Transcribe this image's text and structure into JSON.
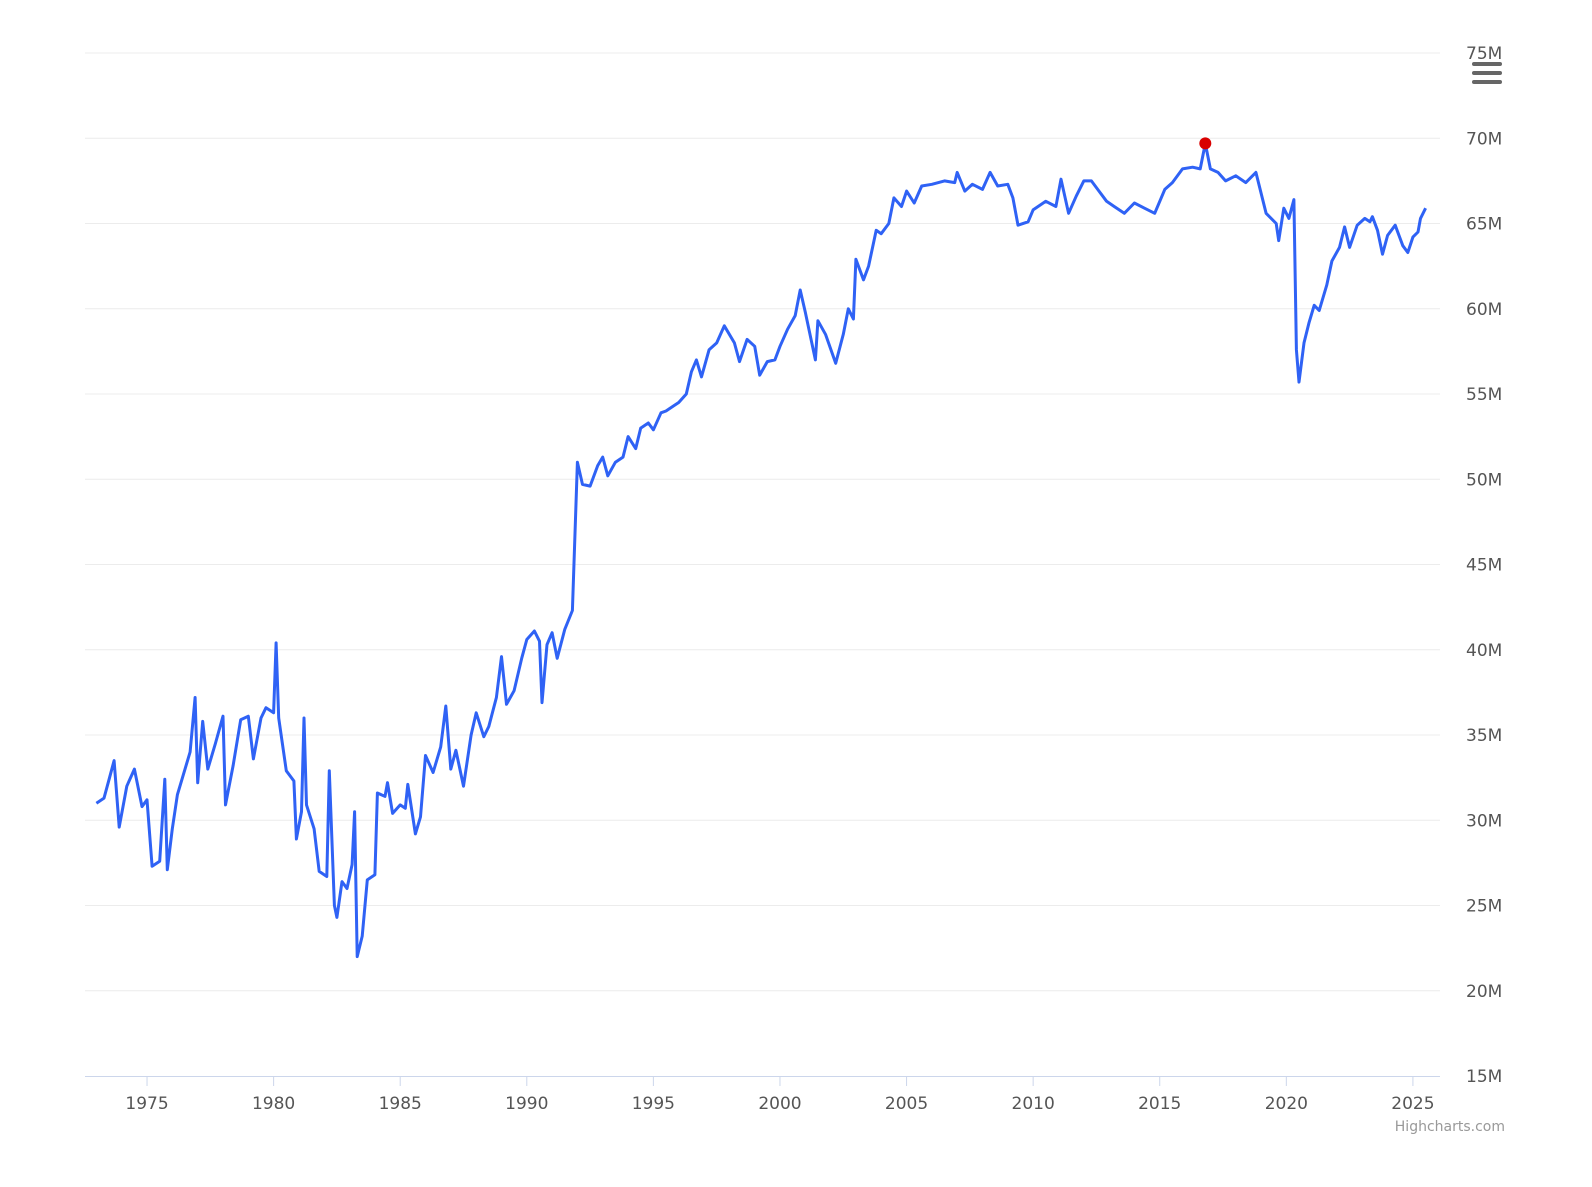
{
  "chart_data": {
    "type": "line",
    "credit": "Highcharts.com",
    "xlim": [
      1972.55,
      2026.07
    ],
    "xticks": [
      1975,
      1980,
      1985,
      1990,
      1995,
      2000,
      2005,
      2010,
      2015,
      2020,
      2025
    ],
    "ylim": [
      15,
      75
    ],
    "yticks": [
      {
        "value": 15,
        "label": "15M"
      },
      {
        "value": 20,
        "label": "20M"
      },
      {
        "value": 25,
        "label": "25M"
      },
      {
        "value": 30,
        "label": "30M"
      },
      {
        "value": 35,
        "label": "35M"
      },
      {
        "value": 40,
        "label": "40M"
      },
      {
        "value": 45,
        "label": "45M"
      },
      {
        "value": 50,
        "label": "50M"
      },
      {
        "value": 55,
        "label": "55M"
      },
      {
        "value": 60,
        "label": "60M"
      },
      {
        "value": 65,
        "label": "65M"
      },
      {
        "value": 70,
        "label": "70M"
      },
      {
        "value": 75,
        "label": "75M"
      }
    ],
    "grid": true,
    "marker_color": "#d90000",
    "series": [
      {
        "color": "#2f62f5",
        "x": [
          1973.0,
          1973.3,
          1973.5,
          1973.7,
          1973.9,
          1974.2,
          1974.5,
          1974.8,
          1975.0,
          1975.2,
          1975.5,
          1975.7,
          1975.8,
          1976.0,
          1976.2,
          1976.4,
          1976.7,
          1976.9,
          1977.0,
          1977.2,
          1977.4,
          1977.7,
          1978.0,
          1978.1,
          1978.4,
          1978.7,
          1979.0,
          1979.2,
          1979.5,
          1979.7,
          1980.0,
          1980.1,
          1980.2,
          1980.5,
          1980.8,
          1980.9,
          1981.1,
          1981.2,
          1981.3,
          1981.6,
          1981.8,
          1982.1,
          1982.2,
          1982.4,
          1982.5,
          1982.7,
          1982.9,
          1983.1,
          1983.2,
          1983.3,
          1983.5,
          1983.7,
          1984.0,
          1984.1,
          1984.4,
          1984.5,
          1984.7,
          1985.0,
          1985.2,
          1985.3,
          1985.6,
          1985.8,
          1986.0,
          1986.3,
          1986.6,
          1986.8,
          1987.0,
          1987.2,
          1987.5,
          1987.8,
          1988.0,
          1988.3,
          1988.5,
          1988.8,
          1989.0,
          1989.2,
          1989.5,
          1989.8,
          1990.0,
          1990.3,
          1990.5,
          1990.6,
          1990.8,
          1991.0,
          1991.2,
          1991.5,
          1991.8,
          1992.0,
          1992.2,
          1992.5,
          1992.8,
          1993.0,
          1993.2,
          1993.5,
          1993.8,
          1994.0,
          1994.3,
          1994.5,
          1994.8,
          1995.0,
          1995.3,
          1995.5,
          1995.8,
          1996.0,
          1996.3,
          1996.5,
          1996.7,
          1996.9,
          1997.2,
          1997.5,
          1997.8,
          1998.2,
          1998.4,
          1998.7,
          1999.0,
          1999.2,
          1999.5,
          1999.8,
          2000.0,
          2000.3,
          2000.6,
          2000.8,
          2001.0,
          2001.4,
          2001.5,
          2001.8,
          2002.2,
          2002.5,
          2002.7,
          2002.9,
          2003.0,
          2003.3,
          2003.5,
          2003.8,
          2004.0,
          2004.3,
          2004.5,
          2004.8,
          2005.0,
          2005.3,
          2005.6,
          2006.0,
          2006.5,
          2006.9,
          2007.0,
          2007.3,
          2007.6,
          2008.0,
          2008.3,
          2008.6,
          2009.0,
          2009.2,
          2009.4,
          2009.8,
          2010.0,
          2010.5,
          2010.9,
          2011.1,
          2011.4,
          2011.7,
          2012.0,
          2012.3,
          2012.6,
          2012.9,
          2013.2,
          2013.6,
          2014.0,
          2014.4,
          2014.8,
          2015.2,
          2015.5,
          2015.9,
          2016.3,
          2016.6,
          2016.8,
          2017.0,
          2017.3,
          2017.6,
          2018.0,
          2018.4,
          2018.8,
          2019.2,
          2019.6,
          2019.7,
          2019.9,
          2020.1,
          2020.3,
          2020.4,
          2020.5,
          2020.7,
          2020.9,
          2021.1,
          2021.3,
          2021.6,
          2021.8,
          2022.1,
          2022.3,
          2022.5,
          2022.8,
          2023.1,
          2023.3,
          2023.4,
          2023.6,
          2023.8,
          2024.0,
          2024.3,
          2024.6,
          2024.8,
          2025.0,
          2025.2,
          2025.3,
          2025.5
        ],
        "values": [
          31.0,
          31.3,
          32.4,
          33.5,
          29.6,
          32.0,
          33.0,
          30.8,
          31.2,
          27.3,
          27.6,
          32.4,
          27.1,
          29.5,
          31.5,
          32.5,
          34.0,
          37.2,
          32.2,
          35.8,
          33.0,
          34.5,
          36.1,
          30.9,
          33.2,
          35.9,
          36.1,
          33.6,
          36.0,
          36.6,
          36.3,
          40.4,
          36.0,
          32.9,
          32.3,
          28.9,
          30.5,
          36.0,
          30.9,
          29.5,
          27.0,
          26.7,
          32.9,
          25.0,
          24.3,
          26.4,
          26.0,
          27.4,
          30.5,
          22.0,
          23.2,
          26.5,
          26.8,
          31.6,
          31.4,
          32.2,
          30.4,
          30.9,
          30.7,
          32.1,
          29.2,
          30.2,
          33.8,
          32.8,
          34.3,
          36.7,
          33.0,
          34.1,
          32.0,
          35.0,
          36.3,
          34.9,
          35.5,
          37.2,
          39.6,
          36.8,
          37.6,
          39.5,
          40.6,
          41.1,
          40.5,
          36.9,
          40.3,
          41.0,
          39.5,
          41.2,
          42.3,
          51.0,
          49.7,
          49.6,
          50.8,
          51.3,
          50.2,
          51.0,
          51.3,
          52.5,
          51.8,
          53.0,
          53.3,
          52.9,
          53.9,
          54.0,
          54.3,
          54.5,
          55.0,
          56.3,
          57.0,
          56.0,
          57.6,
          58.0,
          59.0,
          58.0,
          56.9,
          58.2,
          57.8,
          56.1,
          56.9,
          57.0,
          57.8,
          58.8,
          59.6,
          61.1,
          59.8,
          57.0,
          59.3,
          58.5,
          56.8,
          58.5,
          60.0,
          59.4,
          62.9,
          61.7,
          62.5,
          64.6,
          64.4,
          65.0,
          66.5,
          66.0,
          66.9,
          66.2,
          67.2,
          67.3,
          67.5,
          67.4,
          68.0,
          66.9,
          67.3,
          67.0,
          68.0,
          67.2,
          67.3,
          66.5,
          64.9,
          65.1,
          65.8,
          66.3,
          66.0,
          67.6,
          65.6,
          66.6,
          67.5,
          67.5,
          66.9,
          66.3,
          66.0,
          65.6,
          66.2,
          65.9,
          65.6,
          67.0,
          67.4,
          68.2,
          68.3,
          68.2,
          69.7,
          68.2,
          68.0,
          67.5,
          67.8,
          67.4,
          68.0,
          65.6,
          65.0,
          64.0,
          65.9,
          65.3,
          66.4,
          57.6,
          55.7,
          58.0,
          59.2,
          60.2,
          59.9,
          61.4,
          62.8,
          63.6,
          64.8,
          63.6,
          64.9,
          65.3,
          65.1,
          65.4,
          64.6,
          63.2,
          64.3,
          64.9,
          63.7,
          63.3,
          64.2,
          64.5,
          65.3,
          65.9
        ]
      }
    ]
  }
}
